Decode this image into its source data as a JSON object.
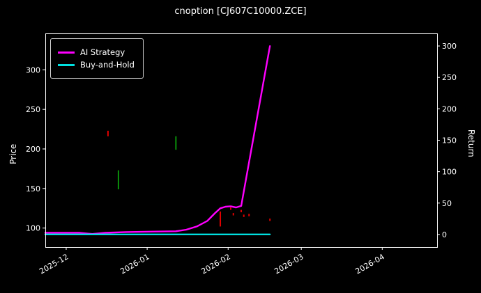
{
  "chart_data": {
    "type": "line",
    "title": "cnoption [CJ607C10000.ZCE]",
    "ylabel_left": "Price",
    "ylabel_right": "Return",
    "grid": false,
    "legend_position": "upper left",
    "background_color": "#000000",
    "frame_color": "#ffffff",
    "text_color": "#ffffff",
    "x_domain": [
      "2025-11-23",
      "2026-04-22"
    ],
    "x_ticks": [
      {
        "date": "2025-12-01",
        "label": "2025-12"
      },
      {
        "date": "2026-01-01",
        "label": "2026-01"
      },
      {
        "date": "2026-02-01",
        "label": "2026-02"
      },
      {
        "date": "2026-03-01",
        "label": "2026-03"
      },
      {
        "date": "2026-04-01",
        "label": "2026-04"
      }
    ],
    "price_axis": {
      "ticks": [
        100,
        150,
        200,
        250,
        300
      ],
      "range": [
        76,
        346
      ]
    },
    "return_axis": {
      "ticks": [
        0,
        50,
        100,
        150,
        200,
        250,
        300
      ],
      "range": [
        -20,
        320
      ]
    },
    "legend": [
      {
        "label": "AI Strategy",
        "color": "#ff00ff"
      },
      {
        "label": "Buy-and-Hold",
        "color": "#00e0e0"
      }
    ],
    "series": [
      {
        "name": "AI Strategy",
        "color": "#ff00ff",
        "width": 2.4,
        "points": [
          [
            "2025-11-23",
            94
          ],
          [
            "2025-12-06",
            94
          ],
          [
            "2025-12-11",
            92.5
          ],
          [
            "2025-12-16",
            94
          ],
          [
            "2025-12-24",
            95
          ],
          [
            "2026-01-03",
            95.5
          ],
          [
            "2026-01-12",
            96
          ],
          [
            "2026-01-16",
            98
          ],
          [
            "2026-01-20",
            102
          ],
          [
            "2026-01-24",
            109
          ],
          [
            "2026-01-27",
            119
          ],
          [
            "2026-01-29",
            125
          ],
          [
            "2026-01-31",
            127
          ],
          [
            "2026-02-02",
            127.5
          ],
          [
            "2026-02-04",
            126
          ],
          [
            "2026-02-06",
            128
          ],
          [
            "2026-02-17",
            330
          ]
        ]
      },
      {
        "name": "Buy-and-Hold",
        "color": "#00e0e0",
        "width": 2.4,
        "points": [
          [
            "2025-11-23",
            92
          ],
          [
            "2026-02-17",
            92
          ]
        ]
      }
    ],
    "signals": {
      "green": {
        "color": "#0a8f0a",
        "segments": [
          [
            "2025-12-21",
            149,
            173
          ],
          [
            "2026-01-12",
            199,
            216
          ]
        ]
      },
      "red": {
        "color": "#e00000",
        "segments": [
          [
            "2025-12-17",
            216,
            223
          ],
          [
            "2026-01-29",
            102,
            121
          ],
          [
            "2026-02-02",
            123,
            126
          ],
          [
            "2026-02-03",
            116,
            119
          ],
          [
            "2026-02-06",
            120,
            123
          ],
          [
            "2026-02-07",
            114,
            117
          ],
          [
            "2026-02-09",
            115,
            118
          ],
          [
            "2026-02-17",
            109,
            112
          ]
        ]
      }
    }
  }
}
